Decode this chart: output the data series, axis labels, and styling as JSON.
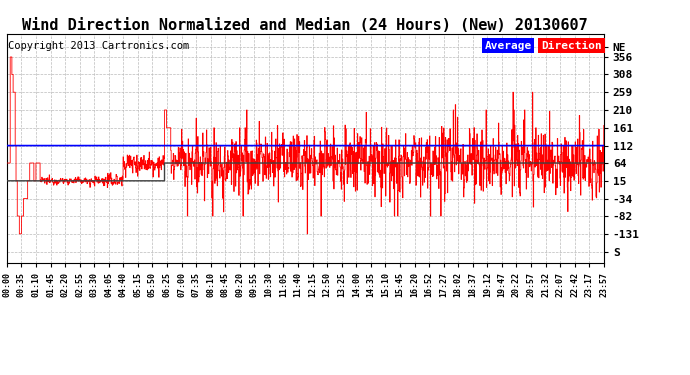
{
  "title": "Wind Direction Normalized and Median (24 Hours) (New) 20130607",
  "copyright": "Copyright 2013 Cartronics.com",
  "legend_avg_label": "Average",
  "legend_dir_label": "Direction",
  "legend_avg_bg": "#0000ff",
  "legend_dir_bg": "#ff0000",
  "ytick_labels": [
    "NE",
    "356",
    "308",
    "259",
    "210",
    "161",
    "112",
    "64",
    "15",
    "-34",
    "-82",
    "-131",
    "S"
  ],
  "ytick_values": [
    383,
    356,
    308,
    259,
    210,
    161,
    112,
    64,
    15,
    -34,
    -82,
    -131,
    -180
  ],
  "ylim": [
    -210,
    420
  ],
  "direction_line_color": "#ff0000",
  "average_line_color": "#0000ff",
  "median_line_color": "#404040",
  "background_color": "#ffffff",
  "grid_color": "#bbbbbb",
  "title_fontsize": 11,
  "copyright_fontsize": 7.5,
  "xtick_labels": [
    "00:00",
    "00:35",
    "01:10",
    "01:45",
    "02:20",
    "02:55",
    "03:30",
    "04:05",
    "04:40",
    "05:15",
    "05:50",
    "06:25",
    "07:00",
    "07:35",
    "08:10",
    "08:45",
    "09:20",
    "09:55",
    "10:30",
    "11:05",
    "11:40",
    "12:15",
    "12:50",
    "13:25",
    "14:00",
    "14:35",
    "15:10",
    "15:45",
    "16:20",
    "16:52",
    "17:27",
    "18:02",
    "18:37",
    "19:12",
    "19:47",
    "20:22",
    "20:57",
    "21:32",
    "22:07",
    "22:42",
    "23:17",
    "23:57"
  ]
}
